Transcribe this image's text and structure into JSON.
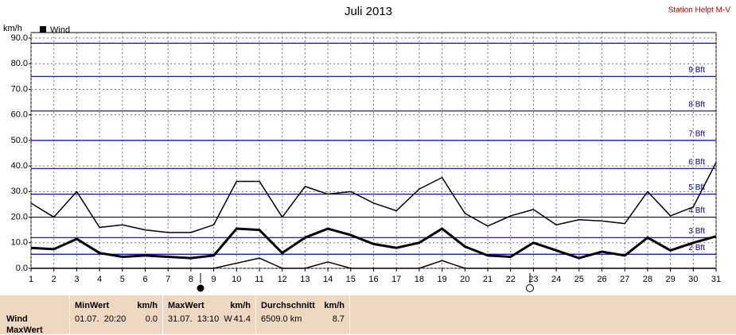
{
  "chart_data": {
    "type": "line",
    "title": "Juli 2013",
    "annotation": "Station Helpt M-V",
    "y_label": "km/h",
    "x": [
      1,
      2,
      3,
      4,
      5,
      6,
      7,
      8,
      9,
      10,
      11,
      12,
      13,
      14,
      15,
      16,
      17,
      18,
      19,
      20,
      21,
      22,
      23,
      24,
      25,
      26,
      27,
      28,
      29,
      30,
      31
    ],
    "series": [
      {
        "color": "#000000",
        "width": 1.5,
        "values": [
          25.5,
          20,
          30,
          16,
          17,
          15,
          14,
          14,
          17,
          34,
          34,
          20,
          32,
          29,
          30,
          25.5,
          22.5,
          31,
          35.5,
          21.5,
          16.5,
          20.5,
          23,
          17,
          19,
          18.5,
          17.5,
          30,
          20.5,
          24,
          41.4
        ]
      },
      {
        "name": "Wind",
        "color": "#000000",
        "width": 3,
        "values": [
          8,
          7.5,
          11.5,
          6,
          4.5,
          5,
          4.5,
          4,
          5,
          15.5,
          15,
          6,
          12,
          15.5,
          13,
          9.5,
          8,
          10,
          15.5,
          8.5,
          5,
          4.5,
          10,
          7,
          4,
          6.5,
          5,
          12,
          7,
          10,
          12.5
        ]
      },
      {
        "color": "#000000",
        "width": 1.5,
        "values": [
          0,
          0,
          0,
          0,
          0,
          0,
          0,
          0,
          0,
          2,
          4,
          0,
          0,
          2.5,
          0,
          0,
          0,
          0,
          3,
          0,
          0,
          0,
          0,
          0,
          0,
          0,
          0,
          0,
          0,
          0,
          0
        ]
      }
    ],
    "xlim": [
      1,
      31
    ],
    "xticks": [
      1,
      2,
      3,
      4,
      5,
      6,
      7,
      8,
      9,
      10,
      11,
      12,
      13,
      14,
      15,
      16,
      17,
      18,
      19,
      20,
      21,
      22,
      23,
      24,
      25,
      26,
      27,
      28,
      29,
      30,
      31
    ],
    "ylim": [
      0,
      90
    ],
    "yticks": [
      {
        "value": 0,
        "label": "0.0"
      },
      {
        "value": 10,
        "label": "10.0"
      },
      {
        "value": 20,
        "label": "20.0"
      },
      {
        "value": 30,
        "label": "30.0"
      },
      {
        "value": 40,
        "label": "40.0"
      },
      {
        "value": 50,
        "label": "50.0"
      },
      {
        "value": 60,
        "label": "60.0"
      },
      {
        "value": 70,
        "label": "70.0"
      },
      {
        "value": 80,
        "label": "80.0"
      },
      {
        "value": 90,
        "label": "90.0"
      }
    ],
    "grid": true,
    "reference_color": "#0000a0",
    "reference_lines": [
      {
        "value": 5.5,
        "label": "2 Bft"
      },
      {
        "value": 12,
        "label": "3 Bft"
      },
      {
        "value": 20,
        "label": "4 Bft"
      },
      {
        "value": 29,
        "label": "5 Bft"
      },
      {
        "value": 39,
        "label": "6 Bft"
      },
      {
        "value": 50,
        "label": "7 Bft"
      },
      {
        "value": 61.5,
        "label": "8 Bft"
      },
      {
        "value": 75,
        "label": "9 Bft"
      },
      {
        "value": 88
      }
    ]
  },
  "summary": {
    "row_labels": [
      "Wind",
      "MaxWert"
    ],
    "columns": [
      {
        "title": "MinWert",
        "unit": "km/h",
        "cells": [
          "01.07.  20:20",
          "0.0"
        ]
      },
      {
        "title": "MaxWert",
        "unit": "km/h",
        "cells": [
          "31.07.  13:10  W",
          "41.4"
        ]
      },
      {
        "title": "Durchschnitt",
        "unit": "km/h",
        "cells": [
          "6509.0 km",
          "8.7"
        ]
      }
    ]
  }
}
